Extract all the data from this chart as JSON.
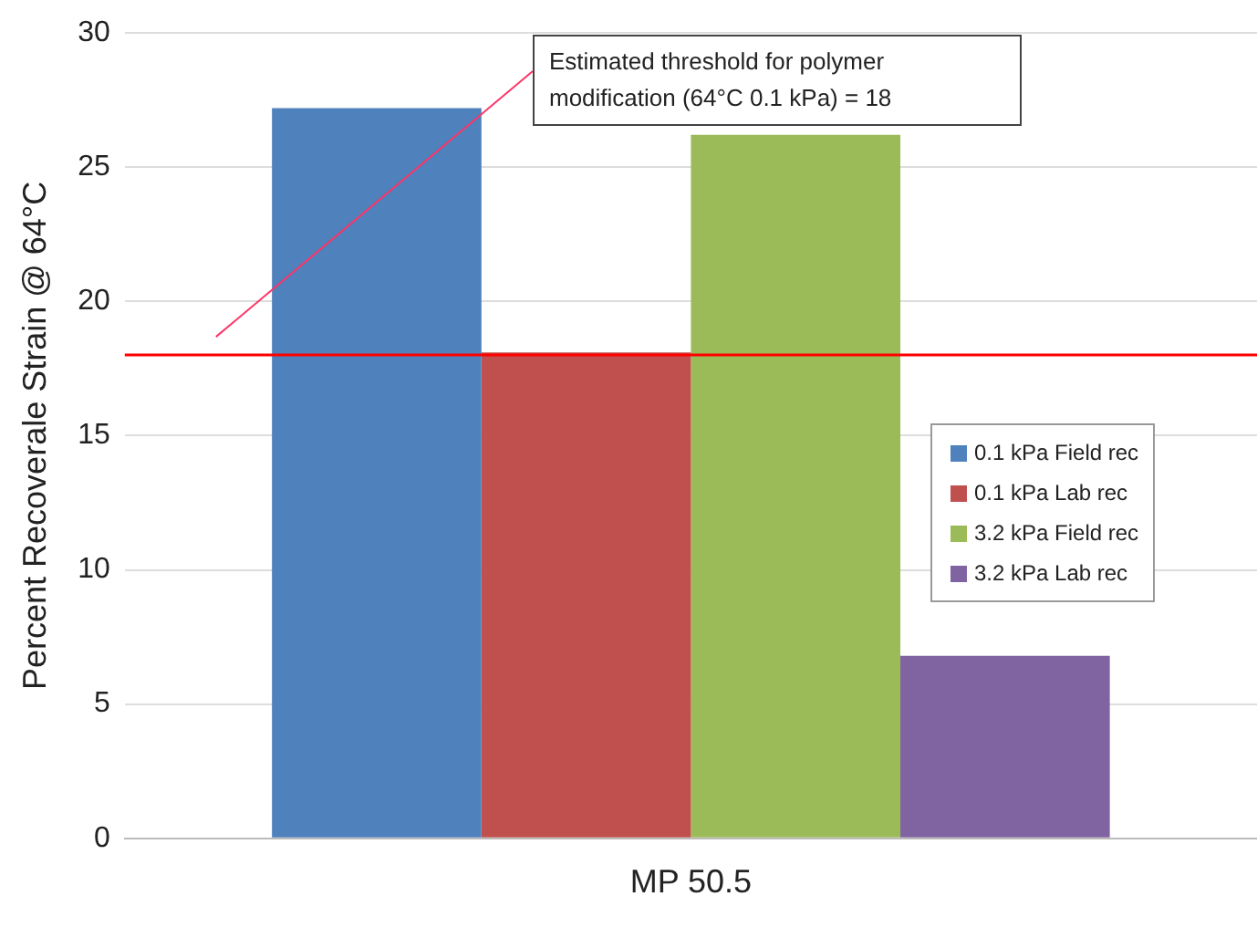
{
  "chart_data": {
    "type": "bar",
    "ylabel": "Percent Recoverale Strain @ 64°C",
    "categories": [
      "MP 50.5"
    ],
    "series": [
      {
        "name": "0.1 kPa Field rec",
        "color": "#4f81bd",
        "values": [
          27.2
        ]
      },
      {
        "name": "0.1 kPa Lab rec",
        "color": "#c0504d",
        "values": [
          18.1
        ]
      },
      {
        "name": "3.2 kPa Field rec",
        "color": "#9bbb59",
        "values": [
          26.2
        ]
      },
      {
        "name": "3.2 kPa Lab rec",
        "color": "#8064a2",
        "values": [
          6.8
        ]
      }
    ],
    "ylim": [
      0,
      30
    ],
    "yticks": [
      0,
      5,
      10,
      15,
      20,
      25,
      30
    ],
    "grid": "y",
    "legend": "right",
    "annotations": [
      "Estimated threshold for polymer modification (64°C 0.1 kPa) = 18"
    ],
    "ref_lines": [
      {
        "axis": "y",
        "value": 18,
        "color": "#ff0000"
      }
    ]
  }
}
